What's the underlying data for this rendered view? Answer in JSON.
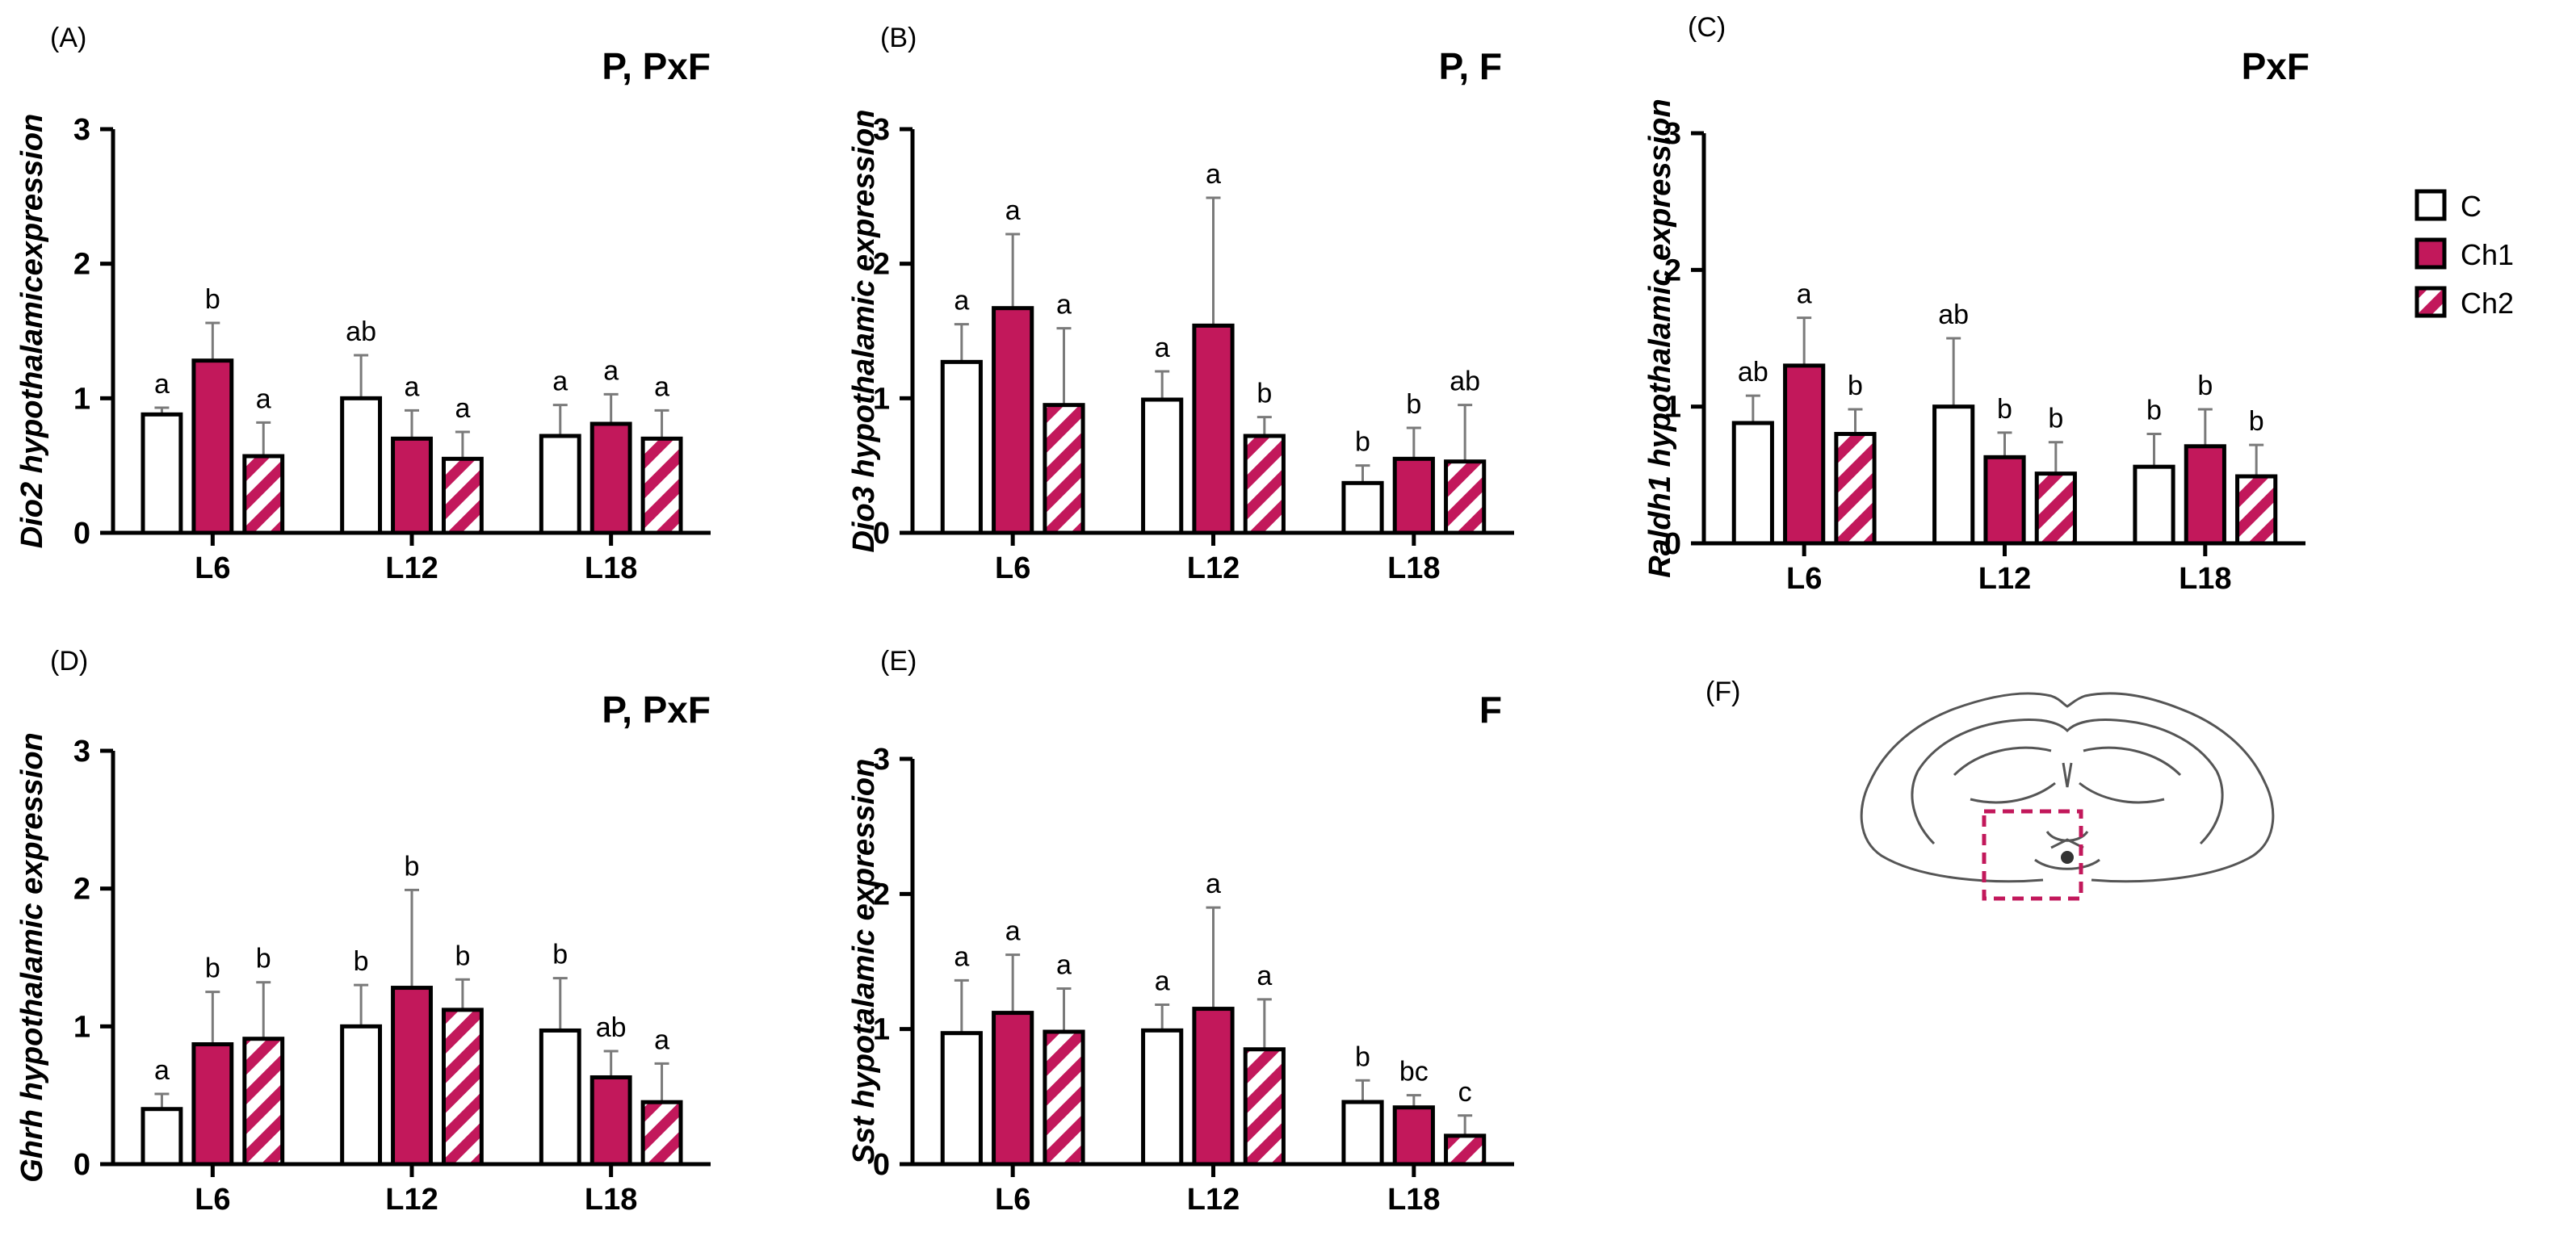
{
  "colors": {
    "C": "#ffffff",
    "Ch1": "#c2185b",
    "Ch2": "#c2185b",
    "axis": "#000000",
    "inset_box": "#c2185b"
  },
  "legend": {
    "items": [
      {
        "key": "C",
        "label": "C"
      },
      {
        "key": "Ch1",
        "label": "Ch1"
      },
      {
        "key": "Ch2",
        "label": "Ch2"
      }
    ]
  },
  "chart_data": [
    {
      "type": "bar",
      "panel": "(A)",
      "effects": "P, PxF",
      "ylabel_gene": "Dio2",
      "ylabel_rest": " hypothalamicexpression",
      "ylim": [
        0,
        3
      ],
      "yticks": [
        0,
        1,
        2,
        3
      ],
      "categories": [
        "L6",
        "L12",
        "L18"
      ],
      "series": [
        {
          "name": "C",
          "values": [
            0.88,
            1.0,
            0.72
          ],
          "errors": [
            0.05,
            0.32,
            0.23
          ],
          "letters": [
            "a",
            "ab",
            "a"
          ]
        },
        {
          "name": "Ch1",
          "values": [
            1.28,
            0.7,
            0.81
          ],
          "errors": [
            0.28,
            0.21,
            0.22
          ],
          "letters": [
            "b",
            "a",
            "a"
          ]
        },
        {
          "name": "Ch2",
          "values": [
            0.57,
            0.55,
            0.7
          ],
          "errors": [
            0.25,
            0.2,
            0.21
          ],
          "letters": [
            "a",
            "a",
            "a"
          ]
        }
      ]
    },
    {
      "type": "bar",
      "panel": "(B)",
      "effects": "P, F",
      "ylabel_gene": "Dio3",
      "ylabel_rest": " hypothalamic expression",
      "ylim": [
        0,
        3
      ],
      "yticks": [
        0,
        1,
        2,
        3
      ],
      "categories": [
        "L6",
        "L12",
        "L18"
      ],
      "series": [
        {
          "name": "C",
          "values": [
            1.27,
            0.99,
            0.37
          ],
          "errors": [
            0.28,
            0.21,
            0.13
          ],
          "letters": [
            "a",
            "a",
            "b"
          ]
        },
        {
          "name": "Ch1",
          "values": [
            1.67,
            1.54,
            0.55
          ],
          "errors": [
            0.55,
            0.95,
            0.23
          ],
          "letters": [
            "a",
            "a",
            "b"
          ]
        },
        {
          "name": "Ch2",
          "values": [
            0.95,
            0.72,
            0.53
          ],
          "errors": [
            0.57,
            0.14,
            0.42
          ],
          "letters": [
            "a",
            "b",
            "ab"
          ]
        }
      ]
    },
    {
      "type": "bar",
      "panel": "(C)",
      "effects": "PxF",
      "ylabel_gene": "Raldh1",
      "ylabel_rest": " hypothalamic expression",
      "ylim": [
        0,
        3
      ],
      "yticks": [
        0,
        1,
        2,
        3
      ],
      "categories": [
        "L6",
        "L12",
        "L18"
      ],
      "series": [
        {
          "name": "C",
          "values": [
            0.88,
            1.0,
            0.56
          ],
          "errors": [
            0.2,
            0.5,
            0.24
          ],
          "letters": [
            "ab",
            "ab",
            "b"
          ]
        },
        {
          "name": "Ch1",
          "values": [
            1.3,
            0.63,
            0.71
          ],
          "errors": [
            0.35,
            0.18,
            0.27
          ],
          "letters": [
            "a",
            "b",
            "b"
          ]
        },
        {
          "name": "Ch2",
          "values": [
            0.8,
            0.51,
            0.49
          ],
          "errors": [
            0.18,
            0.23,
            0.23
          ],
          "letters": [
            "b",
            "b",
            "b"
          ]
        }
      ]
    },
    {
      "type": "bar",
      "panel": "(D)",
      "effects": "P, PxF",
      "ylabel_gene": "Ghrh",
      "ylabel_rest": " hypothalamic expression",
      "ylim": [
        0,
        3
      ],
      "yticks": [
        0,
        1,
        2,
        3
      ],
      "categories": [
        "L6",
        "L12",
        "L18"
      ],
      "series": [
        {
          "name": "C",
          "values": [
            0.4,
            1.0,
            0.97
          ],
          "errors": [
            0.11,
            0.3,
            0.38
          ],
          "letters": [
            "a",
            "b",
            "b"
          ]
        },
        {
          "name": "Ch1",
          "values": [
            0.87,
            1.28,
            0.63
          ],
          "errors": [
            0.38,
            0.71,
            0.19
          ],
          "letters": [
            "b",
            "b",
            "ab"
          ]
        },
        {
          "name": "Ch2",
          "values": [
            0.91,
            1.12,
            0.45
          ],
          "errors": [
            0.41,
            0.22,
            0.28
          ],
          "letters": [
            "b",
            "b",
            "a"
          ]
        }
      ]
    },
    {
      "type": "bar",
      "panel": "(E)",
      "effects": "F",
      "ylabel_gene": "Sst",
      "ylabel_rest": " hypotalamic expression",
      "ylim": [
        0,
        3
      ],
      "yticks": [
        0,
        1,
        2,
        3
      ],
      "categories": [
        "L6",
        "L12",
        "L18"
      ],
      "series": [
        {
          "name": "C",
          "values": [
            0.97,
            0.99,
            0.46
          ],
          "errors": [
            0.39,
            0.19,
            0.16
          ],
          "letters": [
            "a",
            "a",
            "b"
          ]
        },
        {
          "name": "Ch1",
          "values": [
            1.12,
            1.15,
            0.42
          ],
          "errors": [
            0.43,
            0.75,
            0.09
          ],
          "letters": [
            "a",
            "a",
            "bc"
          ]
        },
        {
          "name": "Ch2",
          "values": [
            0.98,
            0.85,
            0.21
          ],
          "errors": [
            0.32,
            0.37,
            0.15
          ],
          "letters": [
            "a",
            "a",
            "c"
          ]
        }
      ]
    }
  ],
  "inset": {
    "panel": "(F)"
  }
}
